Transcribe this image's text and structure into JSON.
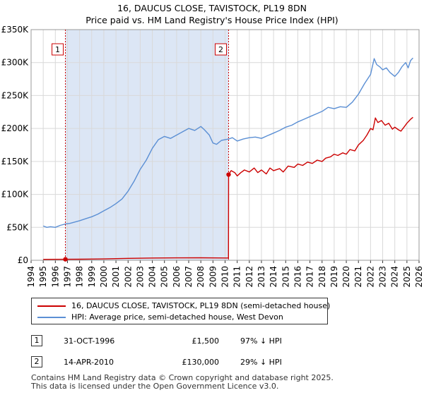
{
  "chart_data": {
    "type": "line",
    "title_line1": "16, DAUCUS CLOSE, TAVISTOCK, PL19 8DN",
    "title_line2": "Price paid vs. HM Land Registry's House Price Index (HPI)",
    "x_ticks": [
      "1994",
      "1995",
      "1996",
      "1997",
      "1998",
      "1999",
      "2000",
      "2001",
      "2002",
      "2003",
      "2004",
      "2005",
      "2006",
      "2007",
      "2008",
      "2009",
      "2010",
      "2011",
      "2012",
      "2013",
      "2014",
      "2015",
      "2016",
      "2017",
      "2018",
      "2019",
      "2020",
      "2021",
      "2022",
      "2023",
      "2024",
      "2025",
      "2026"
    ],
    "y_ticks": [
      {
        "value": 0,
        "label": "£0"
      },
      {
        "value": 50000,
        "label": "£50K"
      },
      {
        "value": 100000,
        "label": "£100K"
      },
      {
        "value": 150000,
        "label": "£150K"
      },
      {
        "value": 200000,
        "label": "£200K"
      },
      {
        "value": 250000,
        "label": "£250K"
      },
      {
        "value": 300000,
        "label": "£300K"
      },
      {
        "value": 350000,
        "label": "£350K"
      }
    ],
    "xlim": [
      1994,
      2026
    ],
    "ylim": [
      0,
      350000
    ],
    "grid": true,
    "shaded_region": {
      "x_from": 1996.83,
      "x_to": 2010.29
    },
    "series": [
      {
        "name": "16, DAUCUS CLOSE, TAVISTOCK, PL19 8DN (semi-detached house)",
        "color": "#cc0000",
        "points": [
          [
            1995.0,
            1400
          ],
          [
            1996.83,
            1500
          ],
          [
            1998.0,
            1650
          ],
          [
            2000.0,
            2000
          ],
          [
            2002.0,
            2900
          ],
          [
            2004.0,
            3400
          ],
          [
            2006.0,
            3600
          ],
          [
            2008.0,
            3700
          ],
          [
            2009.5,
            3500
          ],
          [
            2010.28,
            3450
          ],
          [
            2010.29,
            130000
          ],
          [
            2010.5,
            136000
          ],
          [
            2010.8,
            133000
          ],
          [
            2011.0,
            128000
          ],
          [
            2011.3,
            133000
          ],
          [
            2011.6,
            137000
          ],
          [
            2012.0,
            134000
          ],
          [
            2012.4,
            140000
          ],
          [
            2012.7,
            133000
          ],
          [
            2013.0,
            137000
          ],
          [
            2013.4,
            131000
          ],
          [
            2013.7,
            140000
          ],
          [
            2014.0,
            136000
          ],
          [
            2014.5,
            139000
          ],
          [
            2014.8,
            134000
          ],
          [
            2015.2,
            143000
          ],
          [
            2015.7,
            141000
          ],
          [
            2016.0,
            146000
          ],
          [
            2016.4,
            144000
          ],
          [
            2016.8,
            149000
          ],
          [
            2017.2,
            147000
          ],
          [
            2017.6,
            152000
          ],
          [
            2018.0,
            150000
          ],
          [
            2018.3,
            155000
          ],
          [
            2018.7,
            157000
          ],
          [
            2019.0,
            161000
          ],
          [
            2019.3,
            159000
          ],
          [
            2019.7,
            163000
          ],
          [
            2020.0,
            161000
          ],
          [
            2020.3,
            168000
          ],
          [
            2020.7,
            166000
          ],
          [
            2021.0,
            175000
          ],
          [
            2021.4,
            182000
          ],
          [
            2021.7,
            190000
          ],
          [
            2022.0,
            200000
          ],
          [
            2022.2,
            198000
          ],
          [
            2022.4,
            216000
          ],
          [
            2022.6,
            209000
          ],
          [
            2022.9,
            212000
          ],
          [
            2023.2,
            205000
          ],
          [
            2023.5,
            208000
          ],
          [
            2023.8,
            199000
          ],
          [
            2024.0,
            202000
          ],
          [
            2024.3,
            198000
          ],
          [
            2024.5,
            196000
          ],
          [
            2024.8,
            203000
          ],
          [
            2025.0,
            208000
          ],
          [
            2025.3,
            214000
          ],
          [
            2025.5,
            217000
          ]
        ]
      },
      {
        "name": "HPI: Average price, semi-detached house, West Devon",
        "color": "#5b8fd4",
        "points": [
          [
            1995.0,
            52000
          ],
          [
            1995.3,
            50000
          ],
          [
            1995.6,
            51000
          ],
          [
            1996.0,
            50000
          ],
          [
            1996.4,
            53000
          ],
          [
            1996.83,
            55000
          ],
          [
            1997.2,
            56000
          ],
          [
            1997.6,
            58000
          ],
          [
            1998.0,
            60000
          ],
          [
            1998.5,
            63000
          ],
          [
            1999.0,
            66000
          ],
          [
            1999.5,
            70000
          ],
          [
            2000.0,
            75000
          ],
          [
            2000.5,
            80000
          ],
          [
            2001.0,
            86000
          ],
          [
            2001.5,
            93000
          ],
          [
            2002.0,
            105000
          ],
          [
            2002.5,
            120000
          ],
          [
            2003.0,
            138000
          ],
          [
            2003.5,
            152000
          ],
          [
            2004.0,
            170000
          ],
          [
            2004.5,
            183000
          ],
          [
            2005.0,
            188000
          ],
          [
            2005.5,
            185000
          ],
          [
            2006.0,
            190000
          ],
          [
            2006.5,
            195000
          ],
          [
            2007.0,
            200000
          ],
          [
            2007.5,
            197000
          ],
          [
            2008.0,
            203000
          ],
          [
            2008.3,
            198000
          ],
          [
            2008.7,
            190000
          ],
          [
            2009.0,
            178000
          ],
          [
            2009.3,
            176000
          ],
          [
            2009.7,
            182000
          ],
          [
            2010.29,
            184000
          ],
          [
            2010.6,
            186000
          ],
          [
            2011.0,
            181000
          ],
          [
            2011.5,
            184000
          ],
          [
            2012.0,
            186000
          ],
          [
            2012.5,
            187000
          ],
          [
            2013.0,
            185000
          ],
          [
            2013.5,
            189000
          ],
          [
            2014.0,
            193000
          ],
          [
            2014.5,
            197000
          ],
          [
            2015.0,
            202000
          ],
          [
            2015.5,
            205000
          ],
          [
            2016.0,
            210000
          ],
          [
            2016.5,
            214000
          ],
          [
            2017.0,
            218000
          ],
          [
            2017.5,
            222000
          ],
          [
            2018.0,
            226000
          ],
          [
            2018.5,
            232000
          ],
          [
            2019.0,
            230000
          ],
          [
            2019.5,
            233000
          ],
          [
            2020.0,
            232000
          ],
          [
            2020.5,
            240000
          ],
          [
            2021.0,
            252000
          ],
          [
            2021.5,
            268000
          ],
          [
            2022.0,
            282000
          ],
          [
            2022.3,
            306000
          ],
          [
            2022.5,
            297000
          ],
          [
            2022.8,
            293000
          ],
          [
            2023.0,
            289000
          ],
          [
            2023.3,
            292000
          ],
          [
            2023.6,
            285000
          ],
          [
            2024.0,
            279000
          ],
          [
            2024.3,
            285000
          ],
          [
            2024.6,
            294000
          ],
          [
            2024.9,
            300000
          ],
          [
            2025.1,
            292000
          ],
          [
            2025.3,
            303000
          ],
          [
            2025.5,
            307000
          ]
        ]
      }
    ],
    "annotations": [
      {
        "label": "1",
        "x": 1996.83,
        "y": 1500
      },
      {
        "label": "2",
        "x": 2010.29,
        "y": 130000
      }
    ]
  },
  "legend": {
    "red_label": "16, DAUCUS CLOSE, TAVISTOCK, PL19 8DN (semi-detached house)",
    "blue_label": "HPI: Average price, semi-detached house, West Devon"
  },
  "sales": [
    {
      "num": "1",
      "date": "31-OCT-1996",
      "price": "£1,500",
      "hpi": "97% ↓ HPI"
    },
    {
      "num": "2",
      "date": "14-APR-2010",
      "price": "£130,000",
      "hpi": "29% ↓ HPI"
    }
  ],
  "footer": {
    "line1": "Contains HM Land Registry data © Crown copyright and database right 2025.",
    "line2": "This data is licensed under the Open Government Licence v3.0."
  },
  "colors": {
    "price_paid": "#cc0000",
    "hpi": "#5b8fd4",
    "shade": "#dce6f5",
    "grid": "#d9d9d9"
  }
}
